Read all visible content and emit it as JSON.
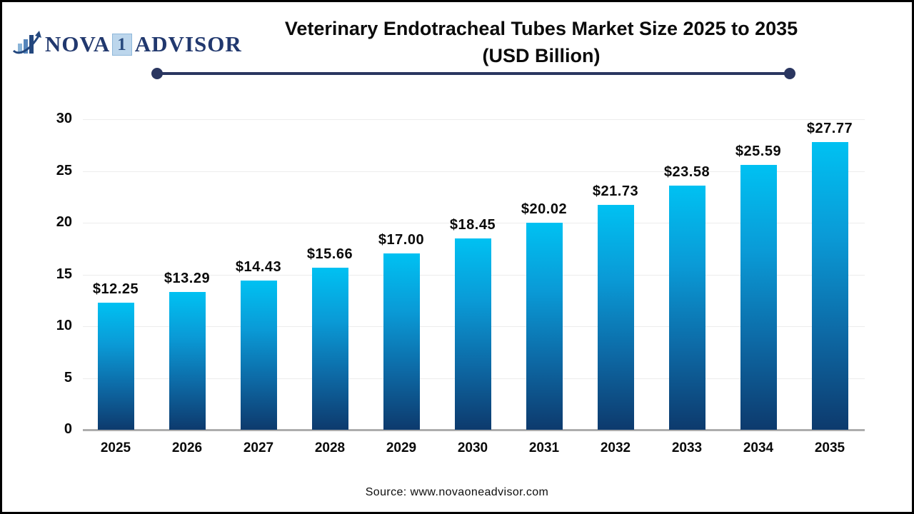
{
  "logo": {
    "name_part1": "NOVA",
    "name_part2": "1",
    "name_part3": "ADVISOR",
    "icon": "bar-growth-swoosh-icon",
    "color": "#21386e",
    "one_box_bg": "#bcd6ec"
  },
  "header": {
    "title_line1": "Veterinary Endotracheal Tubes Market Size 2025 to 2035",
    "title_line2": "(USD Billion)",
    "underline_color": "#2a3660"
  },
  "chart_data": {
    "type": "bar",
    "title": "Veterinary Endotracheal Tubes Market Size 2025 to 2035 (USD Billion)",
    "categories": [
      "2025",
      "2026",
      "2027",
      "2028",
      "2029",
      "2030",
      "2031",
      "2032",
      "2033",
      "2034",
      "2035"
    ],
    "values": [
      12.25,
      13.29,
      14.43,
      15.66,
      17.0,
      18.45,
      20.02,
      21.73,
      23.58,
      25.59,
      27.77
    ],
    "value_prefix": "$",
    "value_decimals": 2,
    "xlabel": "",
    "ylabel": "",
    "ylim": [
      0,
      30
    ],
    "yticks": [
      0,
      5,
      10,
      15,
      20,
      25,
      30
    ],
    "grid": true,
    "legend": "none",
    "bar_gradient_top": "#00c1f2",
    "bar_gradient_bottom": "#0d3a6d",
    "gridline_color": "#ececec",
    "baseline_color": "#adadad"
  },
  "footer": {
    "source": "Source: www.novaoneadvisor.com"
  }
}
